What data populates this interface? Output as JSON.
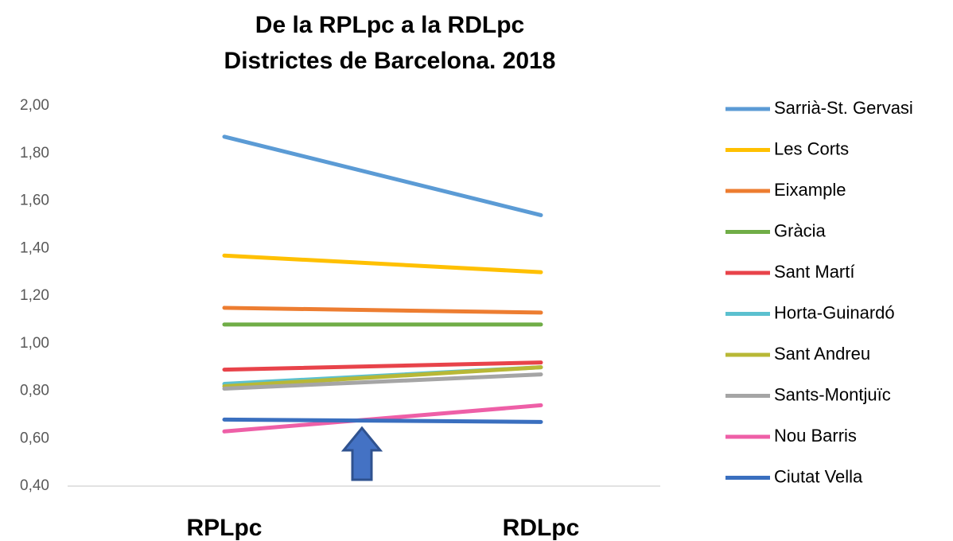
{
  "chart_data": {
    "type": "line",
    "title": "De la RPLpc a la RDLpc",
    "subtitle": "Districtes de Barcelona. 2018",
    "categories": [
      "RPLpc",
      "RDLpc"
    ],
    "series": [
      {
        "name": "Sarrià-St. Gervasi",
        "color": "#5b9bd5",
        "values": [
          1.87,
          1.54
        ]
      },
      {
        "name": "Les Corts",
        "color": "#ffc000",
        "values": [
          1.37,
          1.3
        ]
      },
      {
        "name": "Eixample",
        "color": "#ed7d31",
        "values": [
          1.15,
          1.13
        ]
      },
      {
        "name": "Gràcia",
        "color": "#70ad47",
        "values": [
          1.08,
          1.08
        ]
      },
      {
        "name": "Sant Martí",
        "color": "#e8434a",
        "values": [
          0.89,
          0.92
        ]
      },
      {
        "name": "Horta-Guinardó",
        "color": "#5bc0cf",
        "values": [
          0.83,
          0.9
        ]
      },
      {
        "name": "Sant Andreu",
        "color": "#b8b836",
        "values": [
          0.82,
          0.9
        ]
      },
      {
        "name": "Sants-Montjuïc",
        "color": "#a5a5a5",
        "values": [
          0.81,
          0.87
        ]
      },
      {
        "name": "Nou Barris",
        "color": "#ee5fa7",
        "values": [
          0.63,
          0.74
        ]
      },
      {
        "name": "Ciutat Vella",
        "color": "#3a6fbf",
        "values": [
          0.68,
          0.67
        ]
      }
    ],
    "ylim": [
      0.4,
      2.0
    ],
    "yticks": [
      {
        "value": 0.4,
        "label": "0,40"
      },
      {
        "value": 0.6,
        "label": "0,60"
      },
      {
        "value": 0.8,
        "label": "0,80"
      },
      {
        "value": 1.0,
        "label": "1,00"
      },
      {
        "value": 1.2,
        "label": "1,20"
      },
      {
        "value": 1.4,
        "label": "1,40"
      },
      {
        "value": 1.6,
        "label": "1,60"
      },
      {
        "value": 1.8,
        "label": "1,80"
      },
      {
        "value": 2.0,
        "label": "2,00"
      }
    ],
    "grid": false,
    "legend": "right"
  }
}
